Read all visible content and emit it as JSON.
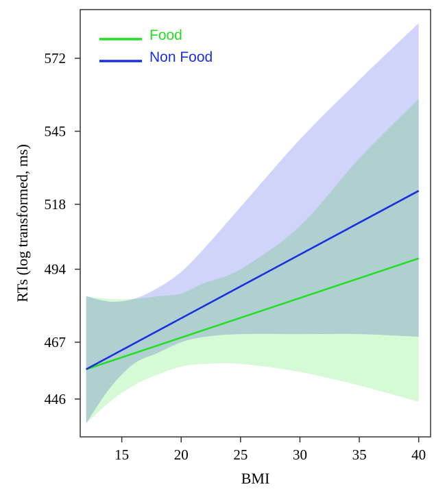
{
  "chart_data": {
    "type": "line",
    "xlabel": "BMI",
    "ylabel": "RTs (log transformed, ms)",
    "xlim": [
      11.5,
      41
    ],
    "ylim": [
      432,
      590
    ],
    "x_ticks": [
      15,
      20,
      25,
      30,
      35,
      40
    ],
    "y_ticks": [
      446,
      467,
      494,
      518,
      545,
      572
    ],
    "x_tick_labels": [
      "15",
      "20",
      "25",
      "30",
      "35",
      "40"
    ],
    "y_tick_labels": [
      "446",
      "467",
      "494",
      "518",
      "545",
      "572"
    ],
    "legend_position": "top-left",
    "grid": false,
    "series": [
      {
        "name": "Food",
        "color": "#22dd22",
        "band_color": "#c8f7c8",
        "x": [
          12,
          40
        ],
        "y": [
          457,
          498
        ],
        "ci_upper": [
          [
            12,
            484
          ],
          [
            14,
            483
          ],
          [
            16,
            483
          ],
          [
            18,
            484
          ],
          [
            20,
            485
          ],
          [
            22,
            489
          ],
          [
            25,
            494
          ],
          [
            30,
            510
          ],
          [
            35,
            535
          ],
          [
            40,
            557
          ]
        ],
        "ci_lower": [
          [
            12,
            437
          ],
          [
            14,
            445
          ],
          [
            16,
            451
          ],
          [
            18,
            455
          ],
          [
            20,
            458
          ],
          [
            22,
            459
          ],
          [
            25,
            459
          ],
          [
            30,
            456
          ],
          [
            35,
            451
          ],
          [
            40,
            445
          ]
        ]
      },
      {
        "name": "Non Food",
        "color": "#1a2fdd",
        "band_color": "#c2c6f8",
        "x": [
          12,
          40
        ],
        "y": [
          457,
          523
        ],
        "ci_upper": [
          [
            12,
            484
          ],
          [
            14,
            482
          ],
          [
            16,
            483
          ],
          [
            18,
            487
          ],
          [
            20,
            493
          ],
          [
            22,
            502
          ],
          [
            25,
            517
          ],
          [
            30,
            542
          ],
          [
            35,
            564
          ],
          [
            40,
            585
          ]
        ],
        "ci_lower": [
          [
            12,
            437
          ],
          [
            14,
            450
          ],
          [
            16,
            459
          ],
          [
            18,
            463
          ],
          [
            20,
            467
          ],
          [
            22,
            469
          ],
          [
            25,
            470
          ],
          [
            30,
            470
          ],
          [
            35,
            470
          ],
          [
            40,
            469
          ]
        ]
      }
    ]
  }
}
